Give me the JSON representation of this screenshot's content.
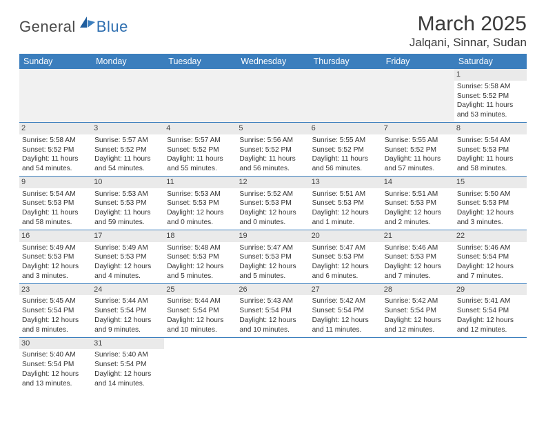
{
  "logo": {
    "textGeneral": "General",
    "textBlue": "Blue"
  },
  "title": "March 2025",
  "location": "Jalqani, Sinnar, Sudan",
  "headerColor": "#3b7ebd",
  "dayHeaders": [
    "Sunday",
    "Monday",
    "Tuesday",
    "Wednesday",
    "Thursday",
    "Friday",
    "Saturday"
  ],
  "weeks": [
    [
      null,
      null,
      null,
      null,
      null,
      null,
      {
        "n": "1",
        "sr": "Sunrise: 5:58 AM",
        "ss": "Sunset: 5:52 PM",
        "dl1": "Daylight: 11 hours",
        "dl2": "and 53 minutes."
      }
    ],
    [
      {
        "n": "2",
        "sr": "Sunrise: 5:58 AM",
        "ss": "Sunset: 5:52 PM",
        "dl1": "Daylight: 11 hours",
        "dl2": "and 54 minutes."
      },
      {
        "n": "3",
        "sr": "Sunrise: 5:57 AM",
        "ss": "Sunset: 5:52 PM",
        "dl1": "Daylight: 11 hours",
        "dl2": "and 54 minutes."
      },
      {
        "n": "4",
        "sr": "Sunrise: 5:57 AM",
        "ss": "Sunset: 5:52 PM",
        "dl1": "Daylight: 11 hours",
        "dl2": "and 55 minutes."
      },
      {
        "n": "5",
        "sr": "Sunrise: 5:56 AM",
        "ss": "Sunset: 5:52 PM",
        "dl1": "Daylight: 11 hours",
        "dl2": "and 56 minutes."
      },
      {
        "n": "6",
        "sr": "Sunrise: 5:55 AM",
        "ss": "Sunset: 5:52 PM",
        "dl1": "Daylight: 11 hours",
        "dl2": "and 56 minutes."
      },
      {
        "n": "7",
        "sr": "Sunrise: 5:55 AM",
        "ss": "Sunset: 5:52 PM",
        "dl1": "Daylight: 11 hours",
        "dl2": "and 57 minutes."
      },
      {
        "n": "8",
        "sr": "Sunrise: 5:54 AM",
        "ss": "Sunset: 5:53 PM",
        "dl1": "Daylight: 11 hours",
        "dl2": "and 58 minutes."
      }
    ],
    [
      {
        "n": "9",
        "sr": "Sunrise: 5:54 AM",
        "ss": "Sunset: 5:53 PM",
        "dl1": "Daylight: 11 hours",
        "dl2": "and 58 minutes."
      },
      {
        "n": "10",
        "sr": "Sunrise: 5:53 AM",
        "ss": "Sunset: 5:53 PM",
        "dl1": "Daylight: 11 hours",
        "dl2": "and 59 minutes."
      },
      {
        "n": "11",
        "sr": "Sunrise: 5:53 AM",
        "ss": "Sunset: 5:53 PM",
        "dl1": "Daylight: 12 hours",
        "dl2": "and 0 minutes."
      },
      {
        "n": "12",
        "sr": "Sunrise: 5:52 AM",
        "ss": "Sunset: 5:53 PM",
        "dl1": "Daylight: 12 hours",
        "dl2": "and 0 minutes."
      },
      {
        "n": "13",
        "sr": "Sunrise: 5:51 AM",
        "ss": "Sunset: 5:53 PM",
        "dl1": "Daylight: 12 hours",
        "dl2": "and 1 minute."
      },
      {
        "n": "14",
        "sr": "Sunrise: 5:51 AM",
        "ss": "Sunset: 5:53 PM",
        "dl1": "Daylight: 12 hours",
        "dl2": "and 2 minutes."
      },
      {
        "n": "15",
        "sr": "Sunrise: 5:50 AM",
        "ss": "Sunset: 5:53 PM",
        "dl1": "Daylight: 12 hours",
        "dl2": "and 3 minutes."
      }
    ],
    [
      {
        "n": "16",
        "sr": "Sunrise: 5:49 AM",
        "ss": "Sunset: 5:53 PM",
        "dl1": "Daylight: 12 hours",
        "dl2": "and 3 minutes."
      },
      {
        "n": "17",
        "sr": "Sunrise: 5:49 AM",
        "ss": "Sunset: 5:53 PM",
        "dl1": "Daylight: 12 hours",
        "dl2": "and 4 minutes."
      },
      {
        "n": "18",
        "sr": "Sunrise: 5:48 AM",
        "ss": "Sunset: 5:53 PM",
        "dl1": "Daylight: 12 hours",
        "dl2": "and 5 minutes."
      },
      {
        "n": "19",
        "sr": "Sunrise: 5:47 AM",
        "ss": "Sunset: 5:53 PM",
        "dl1": "Daylight: 12 hours",
        "dl2": "and 5 minutes."
      },
      {
        "n": "20",
        "sr": "Sunrise: 5:47 AM",
        "ss": "Sunset: 5:53 PM",
        "dl1": "Daylight: 12 hours",
        "dl2": "and 6 minutes."
      },
      {
        "n": "21",
        "sr": "Sunrise: 5:46 AM",
        "ss": "Sunset: 5:53 PM",
        "dl1": "Daylight: 12 hours",
        "dl2": "and 7 minutes."
      },
      {
        "n": "22",
        "sr": "Sunrise: 5:46 AM",
        "ss": "Sunset: 5:54 PM",
        "dl1": "Daylight: 12 hours",
        "dl2": "and 7 minutes."
      }
    ],
    [
      {
        "n": "23",
        "sr": "Sunrise: 5:45 AM",
        "ss": "Sunset: 5:54 PM",
        "dl1": "Daylight: 12 hours",
        "dl2": "and 8 minutes."
      },
      {
        "n": "24",
        "sr": "Sunrise: 5:44 AM",
        "ss": "Sunset: 5:54 PM",
        "dl1": "Daylight: 12 hours",
        "dl2": "and 9 minutes."
      },
      {
        "n": "25",
        "sr": "Sunrise: 5:44 AM",
        "ss": "Sunset: 5:54 PM",
        "dl1": "Daylight: 12 hours",
        "dl2": "and 10 minutes."
      },
      {
        "n": "26",
        "sr": "Sunrise: 5:43 AM",
        "ss": "Sunset: 5:54 PM",
        "dl1": "Daylight: 12 hours",
        "dl2": "and 10 minutes."
      },
      {
        "n": "27",
        "sr": "Sunrise: 5:42 AM",
        "ss": "Sunset: 5:54 PM",
        "dl1": "Daylight: 12 hours",
        "dl2": "and 11 minutes."
      },
      {
        "n": "28",
        "sr": "Sunrise: 5:42 AM",
        "ss": "Sunset: 5:54 PM",
        "dl1": "Daylight: 12 hours",
        "dl2": "and 12 minutes."
      },
      {
        "n": "29",
        "sr": "Sunrise: 5:41 AM",
        "ss": "Sunset: 5:54 PM",
        "dl1": "Daylight: 12 hours",
        "dl2": "and 12 minutes."
      }
    ],
    [
      {
        "n": "30",
        "sr": "Sunrise: 5:40 AM",
        "ss": "Sunset: 5:54 PM",
        "dl1": "Daylight: 12 hours",
        "dl2": "and 13 minutes."
      },
      {
        "n": "31",
        "sr": "Sunrise: 5:40 AM",
        "ss": "Sunset: 5:54 PM",
        "dl1": "Daylight: 12 hours",
        "dl2": "and 14 minutes."
      },
      null,
      null,
      null,
      null,
      null
    ]
  ]
}
